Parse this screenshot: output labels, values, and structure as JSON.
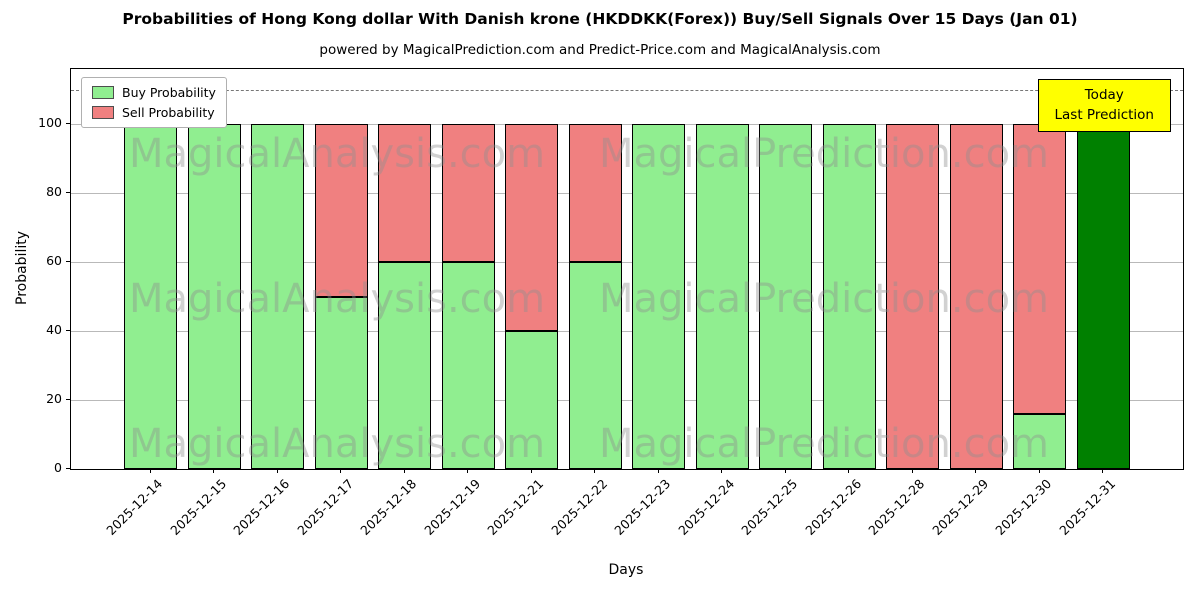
{
  "chart_data": {
    "type": "bar",
    "stacked": true,
    "title": "Probabilities of Hong Kong dollar With Danish krone (HKDDKK(Forex)) Buy/Sell Signals Over 15 Days (Jan 01)",
    "subtitle": "powered by MagicalPrediction.com and Predict-Price.com and MagicalAnalysis.com",
    "xlabel": "Days",
    "ylabel": "Probability",
    "categories": [
      "2025-12-14",
      "2025-12-15",
      "2025-12-16",
      "2025-12-17",
      "2025-12-18",
      "2025-12-19",
      "2025-12-21",
      "2025-12-22",
      "2025-12-23",
      "2025-12-24",
      "2025-12-25",
      "2025-12-26",
      "2025-12-28",
      "2025-12-29",
      "2025-12-30",
      "2025-12-31"
    ],
    "series": [
      {
        "name": "Buy Probability",
        "color": "#90ee90",
        "values": [
          100,
          100,
          100,
          50,
          60,
          60,
          40,
          60,
          100,
          100,
          100,
          100,
          0,
          0,
          16,
          100
        ]
      },
      {
        "name": "Sell Probability",
        "color": "#f08080",
        "values": [
          0,
          0,
          0,
          50,
          40,
          40,
          60,
          40,
          0,
          0,
          0,
          0,
          100,
          100,
          84,
          0
        ]
      }
    ],
    "today_index": 15,
    "today_color": "#008000",
    "ylim": [
      0,
      116
    ],
    "yticks": [
      0,
      20,
      40,
      60,
      80,
      100
    ],
    "dashed_line_y": 110,
    "grid": true,
    "legend_position": "upper-left",
    "annotation": {
      "line1": "Today",
      "line2": "Last Prediction",
      "bg": "#ffff00"
    },
    "watermarks": [
      "MagicalAnalysis.com",
      "MagicalPrediction.com"
    ]
  }
}
